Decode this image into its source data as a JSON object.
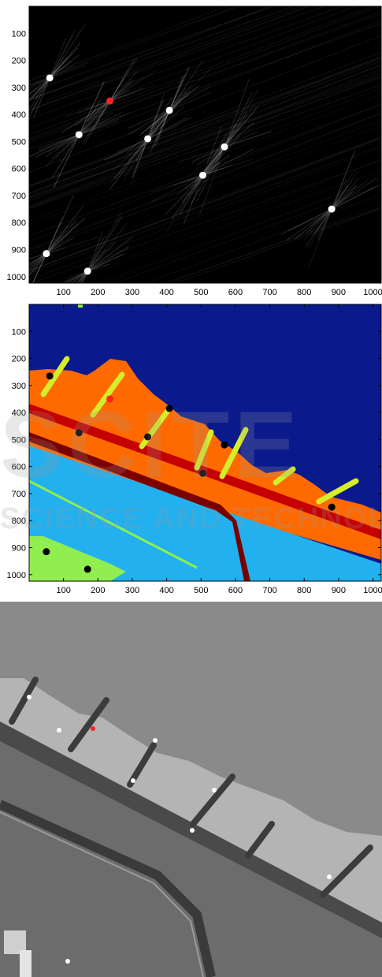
{
  "figure": {
    "panels": [
      {
        "id": "panel-1",
        "kind": "hough-accumulator-plot",
        "background": "#000000"
      },
      {
        "id": "panel-2",
        "kind": "segmentation-label-map"
      },
      {
        "id": "panel-3",
        "kind": "aerial-photo-grayscale",
        "background": "#8a8a8a"
      }
    ]
  },
  "axes": {
    "x_ticks": [
      "100",
      "200",
      "300",
      "400",
      "500",
      "600",
      "700",
      "800",
      "900",
      "1000"
    ],
    "y_ticks": [
      "100",
      "200",
      "300",
      "400",
      "500",
      "600",
      "700",
      "800",
      "900",
      "1000"
    ],
    "xlim": [
      0,
      1024
    ],
    "ylim": [
      0,
      1024
    ]
  },
  "colors": {
    "marker_white": "#ffffff",
    "marker_black": "#000000",
    "marker_highlight": "#ff2020",
    "seg_sea": "#0a1a8c",
    "seg_beach": "#ff6a00",
    "seg_groyne": "#d6ee28",
    "seg_dike": "#c40000",
    "seg_dike_dark": "#7a0000",
    "seg_land": "#22b0ee",
    "seg_grass": "#90ee50"
  },
  "watermark": {
    "line1": "SCITE",
    "line2": "SCIENCE AND TECHNOLOGY"
  },
  "chart_data": [
    {
      "type": "scatter",
      "panel": "panel-1",
      "xlim": [
        0,
        1024
      ],
      "ylim": [
        0,
        1024
      ],
      "y_inverted": true,
      "x_ticks": [
        100,
        200,
        300,
        400,
        500,
        600,
        700,
        800,
        900,
        1000
      ],
      "y_ticks": [
        100,
        200,
        300,
        400,
        500,
        600,
        700,
        800,
        900,
        1000
      ],
      "series": [
        {
          "color": "#ffffff",
          "x": [
            60,
            145,
            345,
            408,
            568,
            505,
            880,
            50,
            170
          ],
          "y": [
            265,
            475,
            490,
            385,
            520,
            625,
            750,
            915,
            980
          ]
        },
        {
          "color": "#ff2020",
          "x": [
            235
          ],
          "y": [
            350
          ]
        }
      ]
    },
    {
      "type": "scatter",
      "panel": "panel-2",
      "xlim": [
        0,
        1024
      ],
      "ylim": [
        0,
        1024
      ],
      "y_inverted": true,
      "x_ticks": [
        100,
        200,
        300,
        400,
        500,
        600,
        700,
        800,
        900,
        1000
      ],
      "y_ticks": [
        100,
        200,
        300,
        400,
        500,
        600,
        700,
        800,
        900,
        1000
      ],
      "series": [
        {
          "color": "#000000",
          "x": [
            60,
            145,
            345,
            408,
            568,
            505,
            880,
            50,
            170
          ],
          "y": [
            265,
            475,
            490,
            385,
            520,
            625,
            750,
            915,
            980
          ]
        },
        {
          "color": "#ff2020",
          "x": [
            235
          ],
          "y": [
            350
          ]
        }
      ]
    }
  ]
}
